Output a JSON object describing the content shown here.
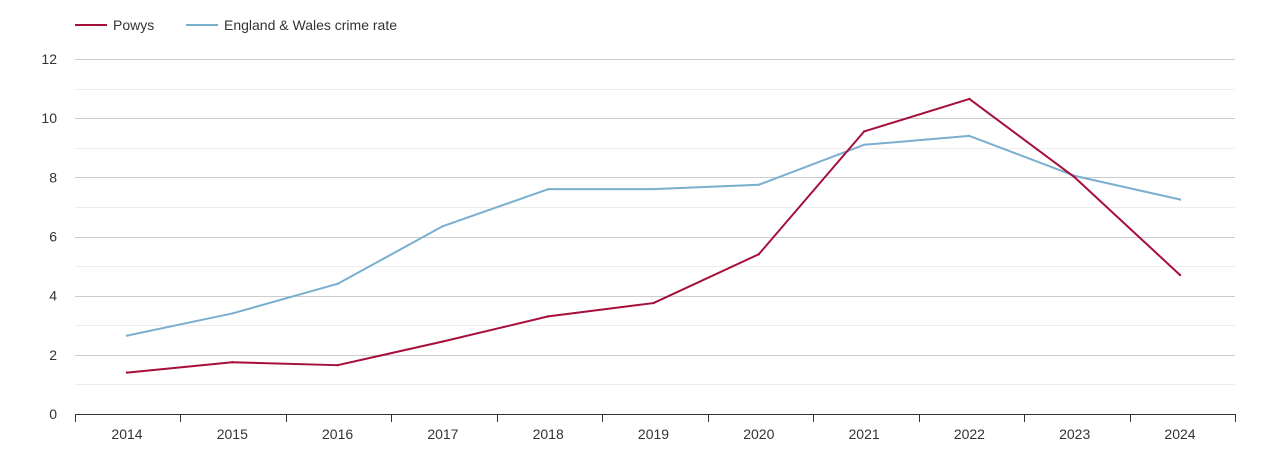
{
  "chart_data": {
    "type": "line",
    "title": "",
    "xlabel": "",
    "ylabel": "",
    "x": [
      "2014",
      "2015",
      "2016",
      "2017",
      "2018",
      "2019",
      "2020",
      "2021",
      "2022",
      "2023",
      "2024"
    ],
    "ylim": [
      0,
      12
    ],
    "yticks": [
      "0",
      "2",
      "4",
      "6",
      "8",
      "10",
      "12"
    ],
    "grid": true,
    "legend_position": "top-left",
    "series": [
      {
        "name": "Powys",
        "color": "#a50f3a",
        "values": [
          1.4,
          1.75,
          1.65,
          2.45,
          3.3,
          3.75,
          5.4,
          9.55,
          10.65,
          8.0,
          4.7
        ]
      },
      {
        "name": "England & Wales crime rate",
        "color": "#7aafd0",
        "values": [
          2.65,
          3.4,
          4.4,
          6.35,
          7.6,
          7.6,
          7.75,
          9.1,
          9.4,
          8.05,
          7.25
        ]
      }
    ]
  }
}
